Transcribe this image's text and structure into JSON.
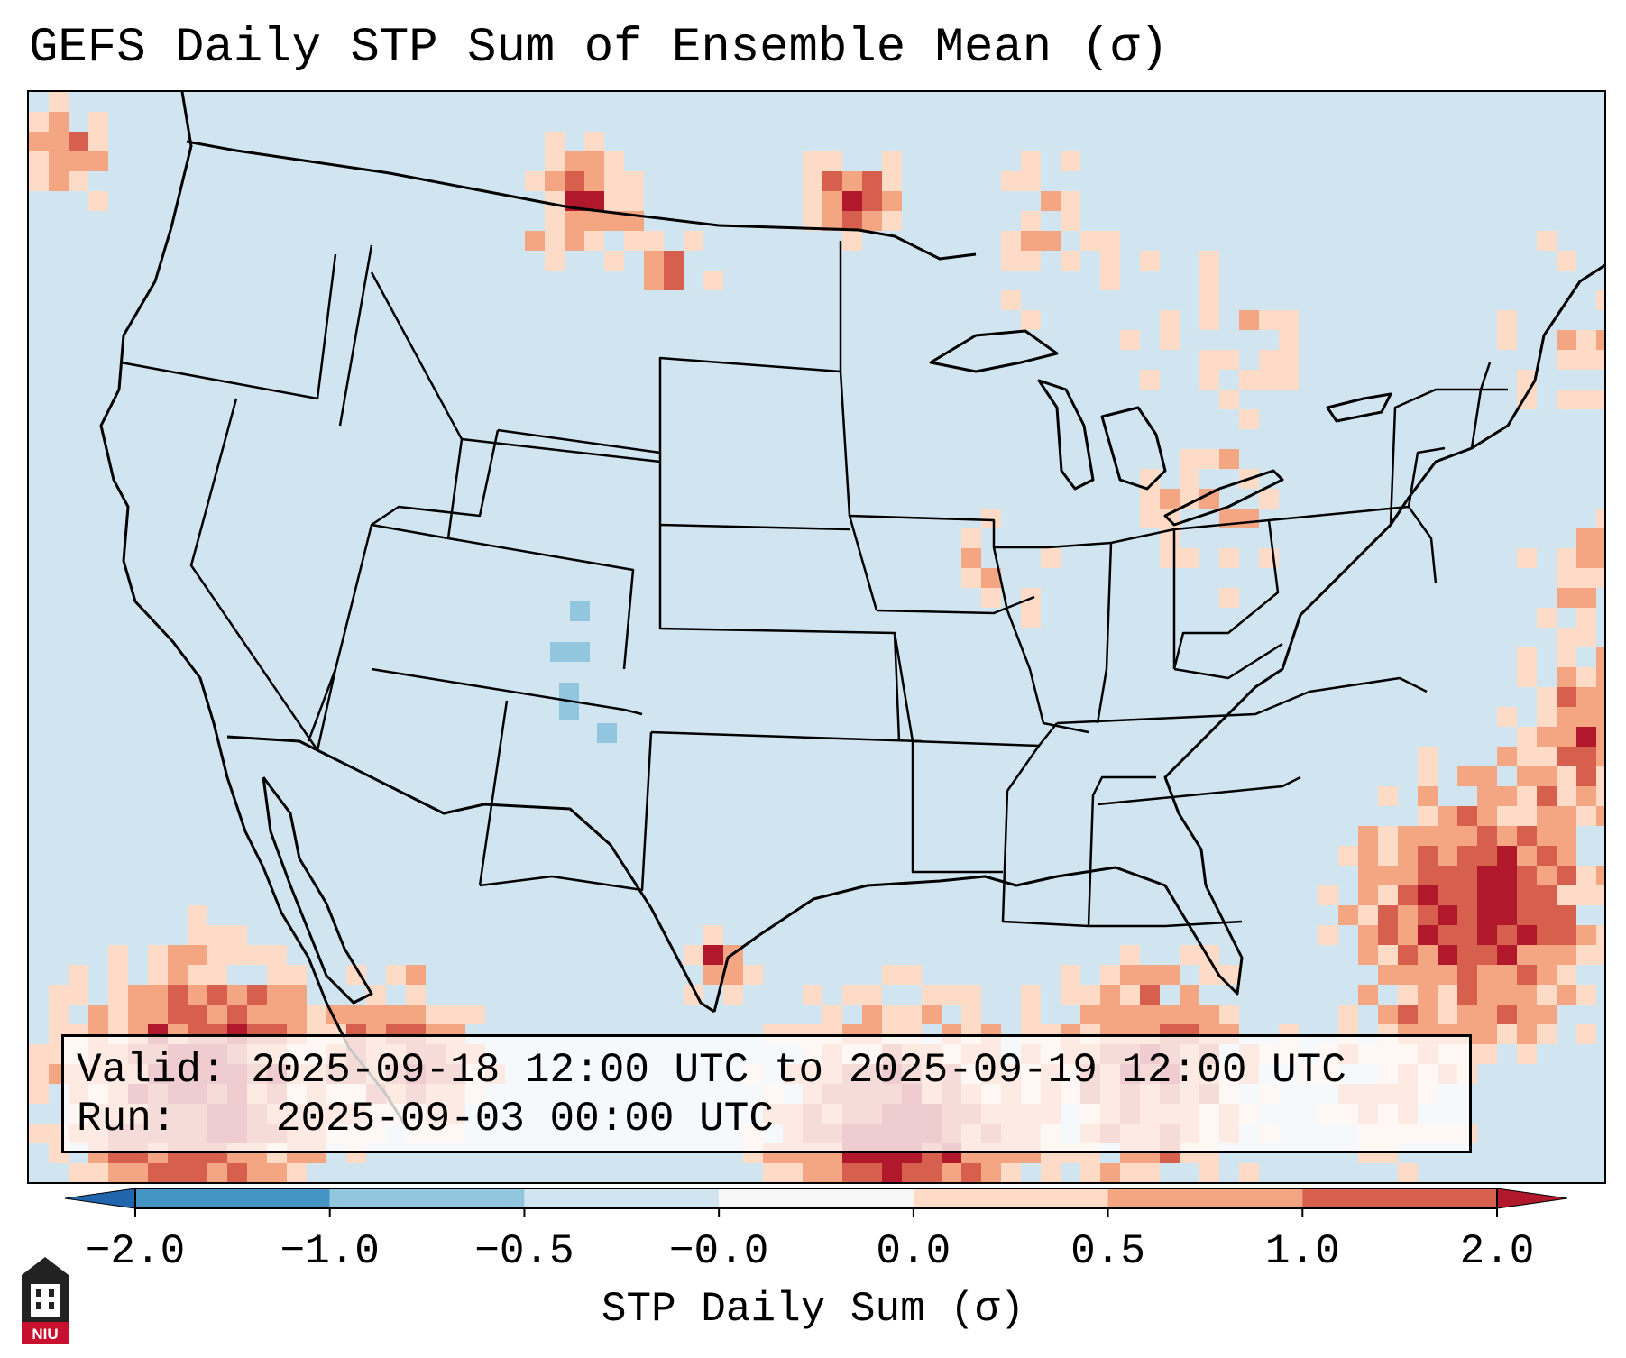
{
  "title": "GEFS Daily STP Sum of Ensemble Mean (σ)",
  "info": {
    "valid_label": "Valid:",
    "valid_value": "2025-09-18 12:00 UTC to 2025-09-19 12:00 UTC",
    "run_label": "Run:",
    "run_value": "2025-09-03 00:00 UTC"
  },
  "colorbar": {
    "label": "STP Daily Sum (σ)",
    "ticks": [
      "−2.0",
      "−1.0",
      "−0.5",
      "−0.0",
      "0.0",
      "0.5",
      "1.0",
      "2.0"
    ],
    "colors": [
      "#2166ac",
      "#4393c3",
      "#92c5de",
      "#d1e5f0",
      "#f7f7f7",
      "#fddbc7",
      "#f4a582",
      "#d6604d",
      "#b2182b"
    ]
  },
  "map": {
    "background_color": "#d1e5f0",
    "region": "Contiguous United States, northern Mexico, Gulf of Mexico, Caribbean",
    "notable_anomalies": [
      {
        "area": "Northern Great Plains / Montana",
        "level": "strong positive"
      },
      {
        "area": "Baja California / Eastern Pacific",
        "level": "strong positive"
      },
      {
        "area": "Gulf of Mexico",
        "level": "strong positive"
      },
      {
        "area": "Western Atlantic",
        "level": "strong positive"
      },
      {
        "area": "Colorado",
        "level": "weak negative"
      }
    ]
  },
  "logo": {
    "text": "NIU"
  }
}
